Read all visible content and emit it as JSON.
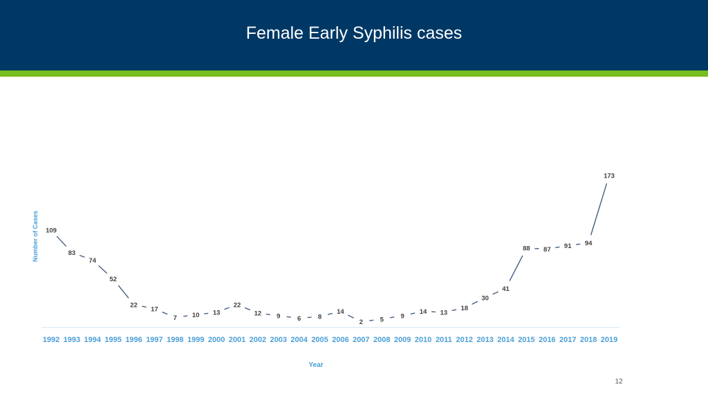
{
  "slide": {
    "title": "Female Early Syphilis cases",
    "page_number": "12"
  },
  "colors": {
    "header_bg": "#003865",
    "header_stripe": "#78be20",
    "line": "#44607f",
    "axis_text": "#4a9fd8",
    "label_text": "#404040"
  },
  "chart_data": {
    "type": "line",
    "title": "",
    "xlabel": "Year",
    "ylabel": "Number of Cases",
    "categories": [
      "1992",
      "1993",
      "1994",
      "1995",
      "1996",
      "1997",
      "1998",
      "1999",
      "2000",
      "2001",
      "2002",
      "2003",
      "2004",
      "2005",
      "2006",
      "2007",
      "2008",
      "2009",
      "2010",
      "2011",
      "2012",
      "2013",
      "2014",
      "2015",
      "2016",
      "2017",
      "2018",
      "2019"
    ],
    "values": [
      109,
      83,
      74,
      52,
      22,
      17,
      7,
      10,
      13,
      22,
      12,
      9,
      6,
      8,
      14,
      2,
      5,
      9,
      14,
      13,
      18,
      30,
      41,
      88,
      87,
      91,
      94,
      173
    ],
    "ylim": [
      0,
      173
    ],
    "grid": false,
    "legend": "none",
    "data_labels": true
  }
}
